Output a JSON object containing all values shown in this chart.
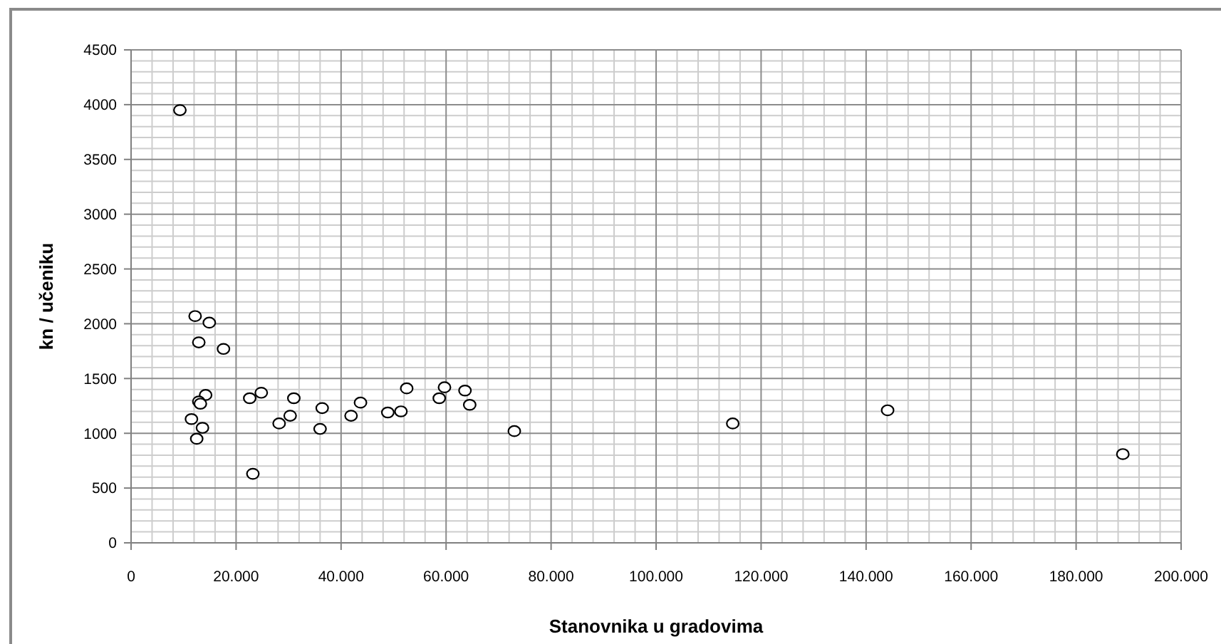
{
  "chart_data": {
    "type": "scatter",
    "xlabel": "Stanovnika u gradovima",
    "ylabel": "kn / učeniku",
    "x": [
      9300,
      12200,
      14900,
      12900,
      17600,
      14200,
      12900,
      13200,
      11500,
      13600,
      12500,
      22600,
      24800,
      23200,
      28200,
      30300,
      31000,
      36400,
      36000,
      41900,
      43700,
      48900,
      51400,
      52500,
      58700,
      59700,
      63600,
      64500,
      73000,
      114600,
      144100,
      188900
    ],
    "values": [
      3950,
      2070,
      2010,
      1830,
      1770,
      1350,
      1290,
      1270,
      1130,
      1050,
      950,
      1320,
      1370,
      630,
      1090,
      1160,
      1320,
      1230,
      1040,
      1160,
      1280,
      1190,
      1200,
      1410,
      1320,
      1420,
      1390,
      1260,
      1020,
      1090,
      1210,
      810
    ],
    "color": "#000000",
    "marker": "circle",
    "grid": true,
    "xlim": [
      0,
      200000
    ],
    "xticks": [
      0,
      {
        "value": 20000,
        "label": "20.000"
      },
      {
        "value": 40000,
        "label": "40.000"
      },
      {
        "value": 60000,
        "label": "60.000"
      },
      {
        "value": 80000,
        "label": "80.000"
      },
      {
        "value": 100000,
        "label": "100.000"
      },
      {
        "value": 120000,
        "label": "120.000"
      },
      {
        "value": 140000,
        "label": "140.000"
      },
      {
        "value": 160000,
        "label": "160.000"
      },
      {
        "value": 180000,
        "label": "180.000"
      },
      {
        "value": 200000,
        "label": "200.000"
      }
    ],
    "ylim": [
      0,
      4500
    ],
    "yticks": [
      0,
      500,
      1000,
      1500,
      2000,
      2500,
      3000,
      3500,
      4000,
      4500
    ]
  }
}
